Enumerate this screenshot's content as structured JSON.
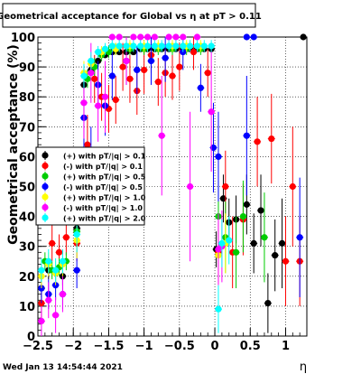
{
  "chart_data": {
    "type": "scatter",
    "title": "Geometrical acceptance for Global vs  η at pT > 0.11",
    "xlabel": "η",
    "ylabel": "Geometrical acceptance (%)",
    "xlim": [
      -2.5,
      1.3
    ],
    "ylim": [
      0,
      100
    ],
    "x_ticks": [
      {
        "value": -2.5,
        "label": "−2.5"
      },
      {
        "value": -2,
        "label": "−2"
      },
      {
        "value": -1.5,
        "label": "−1.5"
      },
      {
        "value": -1,
        "label": "−1"
      },
      {
        "value": -0.5,
        "label": "−0.5"
      },
      {
        "value": 0,
        "label": "0"
      },
      {
        "value": 0.5,
        "label": "0.5"
      },
      {
        "value": 1,
        "label": "1"
      }
    ],
    "y_ticks": [
      0,
      10,
      20,
      30,
      40,
      50,
      60,
      70,
      80,
      90,
      100
    ],
    "grid": true,
    "legend_position": "left-middle",
    "timestamp": "Wed Jan 13 14:54:44 2021",
    "series": [
      {
        "name": "(+) with pT/|q| > 0.1",
        "color": "#000000",
        "points": [
          {
            "x": -2.45,
            "y": 16,
            "e": 3
          },
          {
            "x": -2.35,
            "y": 22,
            "e": 3
          },
          {
            "x": -2.15,
            "y": 20,
            "e": 3
          },
          {
            "x": -1.95,
            "y": 36,
            "e": 5
          },
          {
            "x": -1.85,
            "y": 84,
            "e": 3
          },
          {
            "x": -1.75,
            "y": 89,
            "e": 2
          },
          {
            "x": -1.65,
            "y": 92,
            "e": 2
          },
          {
            "x": -1.55,
            "y": 94,
            "e": 1
          },
          {
            "x": -1.45,
            "y": 95,
            "e": 1
          },
          {
            "x": -1.35,
            "y": 95,
            "e": 1
          },
          {
            "x": -1.25,
            "y": 95,
            "e": 1
          },
          {
            "x": -1.15,
            "y": 95,
            "e": 1
          },
          {
            "x": -1.05,
            "y": 96,
            "e": 1
          },
          {
            "x": -0.95,
            "y": 96,
            "e": 1
          },
          {
            "x": -0.85,
            "y": 96,
            "e": 1
          },
          {
            "x": -0.75,
            "y": 96,
            "e": 1
          },
          {
            "x": -0.65,
            "y": 96,
            "e": 1
          },
          {
            "x": -0.55,
            "y": 96,
            "e": 1
          },
          {
            "x": -0.45,
            "y": 96,
            "e": 1
          },
          {
            "x": -0.35,
            "y": 96,
            "e": 1
          },
          {
            "x": -0.25,
            "y": 96,
            "e": 1
          },
          {
            "x": -0.15,
            "y": 96,
            "e": 1
          },
          {
            "x": -0.05,
            "y": 96,
            "e": 1
          },
          {
            "x": 0.02,
            "y": 29,
            "e": 6
          },
          {
            "x": 0.12,
            "y": 46,
            "e": 8
          },
          {
            "x": 0.2,
            "y": 38,
            "e": 8
          },
          {
            "x": 0.3,
            "y": 39,
            "e": 8
          },
          {
            "x": 0.45,
            "y": 44,
            "e": 10
          },
          {
            "x": 0.55,
            "y": 31,
            "e": 10
          },
          {
            "x": 0.65,
            "y": 42,
            "e": 12
          },
          {
            "x": 0.75,
            "y": 11,
            "e": 10
          },
          {
            "x": 0.85,
            "y": 27,
            "e": 12
          },
          {
            "x": 0.95,
            "y": 31,
            "e": 15
          },
          {
            "x": 1.25,
            "y": 100,
            "e": 0
          }
        ]
      },
      {
        "name": "(-) with pT/|q| > 0.1",
        "color": "#ff0000",
        "points": [
          {
            "x": -2.45,
            "y": 11,
            "e": 5
          },
          {
            "x": -2.3,
            "y": 31,
            "e": 6
          },
          {
            "x": -2.2,
            "y": 28,
            "e": 6
          },
          {
            "x": -2.1,
            "y": 33,
            "e": 6
          },
          {
            "x": -1.95,
            "y": 31,
            "e": 6
          },
          {
            "x": -1.8,
            "y": 64,
            "e": 10
          },
          {
            "x": -1.7,
            "y": 86,
            "e": 8
          },
          {
            "x": -1.6,
            "y": 80,
            "e": 8
          },
          {
            "x": -1.5,
            "y": 76,
            "e": 8
          },
          {
            "x": -1.4,
            "y": 79,
            "e": 8
          },
          {
            "x": -1.3,
            "y": 90,
            "e": 8
          },
          {
            "x": -1.2,
            "y": 86,
            "e": 8
          },
          {
            "x": -1.1,
            "y": 82,
            "e": 8
          },
          {
            "x": -1.0,
            "y": 89,
            "e": 8
          },
          {
            "x": -0.9,
            "y": 94,
            "e": 6
          },
          {
            "x": -0.8,
            "y": 85,
            "e": 8
          },
          {
            "x": -0.7,
            "y": 88,
            "e": 8
          },
          {
            "x": -0.6,
            "y": 87,
            "e": 8
          },
          {
            "x": -0.5,
            "y": 90,
            "e": 8
          },
          {
            "x": -0.3,
            "y": 95,
            "e": 6
          },
          {
            "x": -0.1,
            "y": 88,
            "e": 8
          },
          {
            "x": 0.05,
            "y": 28,
            "e": 10
          },
          {
            "x": 0.15,
            "y": 50,
            "e": 12
          },
          {
            "x": 0.25,
            "y": 28,
            "e": 12
          },
          {
            "x": 0.4,
            "y": 39,
            "e": 12
          },
          {
            "x": 0.6,
            "y": 65,
            "e": 15
          },
          {
            "x": 0.8,
            "y": 66,
            "e": 15
          },
          {
            "x": 1.0,
            "y": 25,
            "e": 15
          },
          {
            "x": 1.1,
            "y": 50,
            "e": 20
          },
          {
            "x": 1.2,
            "y": 25,
            "e": 15
          }
        ]
      },
      {
        "name": "(+) with pT/|q| > 0.5",
        "color": "#00cc00",
        "points": [
          {
            "x": -2.4,
            "y": 25,
            "e": 3
          },
          {
            "x": -2.3,
            "y": 22,
            "e": 3
          },
          {
            "x": -2.2,
            "y": 23,
            "e": 3
          },
          {
            "x": -2.1,
            "y": 25,
            "e": 3
          },
          {
            "x": -1.95,
            "y": 35,
            "e": 5
          },
          {
            "x": -1.8,
            "y": 86,
            "e": 3
          },
          {
            "x": -1.7,
            "y": 90,
            "e": 3
          },
          {
            "x": -1.6,
            "y": 94,
            "e": 2
          },
          {
            "x": -1.5,
            "y": 95,
            "e": 2
          },
          {
            "x": -1.4,
            "y": 96,
            "e": 2
          },
          {
            "x": -1.2,
            "y": 96,
            "e": 2
          },
          {
            "x": -1.0,
            "y": 96,
            "e": 2
          },
          {
            "x": -0.8,
            "y": 96,
            "e": 2
          },
          {
            "x": -0.6,
            "y": 96,
            "e": 2
          },
          {
            "x": -0.4,
            "y": 96,
            "e": 2
          },
          {
            "x": -0.2,
            "y": 96,
            "e": 2
          },
          {
            "x": 0.05,
            "y": 40,
            "e": 12
          },
          {
            "x": 0.15,
            "y": 33,
            "e": 12
          },
          {
            "x": 0.3,
            "y": 28,
            "e": 12
          },
          {
            "x": 0.4,
            "y": 40,
            "e": 12
          },
          {
            "x": 0.7,
            "y": 33,
            "e": 15
          }
        ]
      },
      {
        "name": "(-) with pT/|q| > 0.5",
        "color": "#0000ff",
        "points": [
          {
            "x": -2.45,
            "y": 16,
            "e": 5
          },
          {
            "x": -2.35,
            "y": 14,
            "e": 5
          },
          {
            "x": -2.25,
            "y": 17,
            "e": 5
          },
          {
            "x": -2.15,
            "y": 14,
            "e": 5
          },
          {
            "x": -1.95,
            "y": 22,
            "e": 6
          },
          {
            "x": -1.85,
            "y": 73,
            "e": 10
          },
          {
            "x": -1.75,
            "y": 60,
            "e": 10
          },
          {
            "x": -1.65,
            "y": 84,
            "e": 8
          },
          {
            "x": -1.55,
            "y": 77,
            "e": 10
          },
          {
            "x": -1.45,
            "y": 87,
            "e": 8
          },
          {
            "x": -1.25,
            "y": 92,
            "e": 8
          },
          {
            "x": -1.1,
            "y": 89,
            "e": 8
          },
          {
            "x": -0.9,
            "y": 92,
            "e": 8
          },
          {
            "x": -0.7,
            "y": 93,
            "e": 8
          },
          {
            "x": -0.45,
            "y": 95,
            "e": 6
          },
          {
            "x": -0.2,
            "y": 83,
            "e": 8
          },
          {
            "x": -0.02,
            "y": 63,
            "e": 15
          },
          {
            "x": 0.05,
            "y": 60,
            "e": 15
          },
          {
            "x": 0.45,
            "y": 67,
            "e": 20
          },
          {
            "x": 0.45,
            "y": 100,
            "e": 0
          },
          {
            "x": 0.55,
            "y": 100,
            "e": 0
          },
          {
            "x": 1.2,
            "y": 33,
            "e": 20
          }
        ]
      },
      {
        "name": "(+) with pT/|q| > 1.0",
        "color": "#ffff00",
        "points": [
          {
            "x": -2.45,
            "y": 20,
            "e": 4
          },
          {
            "x": -2.35,
            "y": 24,
            "e": 4
          },
          {
            "x": -2.25,
            "y": 21,
            "e": 4
          },
          {
            "x": -2.15,
            "y": 24,
            "e": 4
          },
          {
            "x": -1.95,
            "y": 32,
            "e": 6
          },
          {
            "x": -1.85,
            "y": 88,
            "e": 4
          },
          {
            "x": -1.75,
            "y": 91,
            "e": 3
          },
          {
            "x": -1.6,
            "y": 95,
            "e": 2
          },
          {
            "x": -1.4,
            "y": 96,
            "e": 2
          },
          {
            "x": -1.2,
            "y": 97,
            "e": 2
          },
          {
            "x": -1.0,
            "y": 97,
            "e": 2
          },
          {
            "x": -0.8,
            "y": 97,
            "e": 2
          },
          {
            "x": -0.6,
            "y": 97,
            "e": 2
          },
          {
            "x": -0.4,
            "y": 97,
            "e": 2
          },
          {
            "x": -0.2,
            "y": 97,
            "e": 2
          },
          {
            "x": 0.05,
            "y": 27,
            "e": 10
          },
          {
            "x": 0.15,
            "y": 31,
            "e": 10
          }
        ]
      },
      {
        "name": "(-) with pT/|q| > 1.0",
        "color": "#ff00ff",
        "points": [
          {
            "x": -2.45,
            "y": 5,
            "e": 5
          },
          {
            "x": -2.35,
            "y": 12,
            "e": 6
          },
          {
            "x": -2.25,
            "y": 7,
            "e": 6
          },
          {
            "x": -2.15,
            "y": 14,
            "e": 6
          },
          {
            "x": -1.85,
            "y": 78,
            "e": 12
          },
          {
            "x": -1.75,
            "y": 88,
            "e": 10
          },
          {
            "x": -1.65,
            "y": 77,
            "e": 12
          },
          {
            "x": -1.55,
            "y": 80,
            "e": 12
          },
          {
            "x": -1.45,
            "y": 100,
            "e": 0
          },
          {
            "x": -1.35,
            "y": 100,
            "e": 0
          },
          {
            "x": -1.25,
            "y": 92,
            "e": 8
          },
          {
            "x": -1.15,
            "y": 100,
            "e": 0
          },
          {
            "x": -1.05,
            "y": 100,
            "e": 0
          },
          {
            "x": -0.95,
            "y": 100,
            "e": 0
          },
          {
            "x": -0.85,
            "y": 100,
            "e": 0
          },
          {
            "x": -0.75,
            "y": 67,
            "e": 20
          },
          {
            "x": -0.65,
            "y": 100,
            "e": 0
          },
          {
            "x": -0.55,
            "y": 100,
            "e": 0
          },
          {
            "x": -0.45,
            "y": 100,
            "e": 0
          },
          {
            "x": -0.35,
            "y": 50,
            "e": 25
          },
          {
            "x": -0.25,
            "y": 100,
            "e": 0
          },
          {
            "x": -0.05,
            "y": 75,
            "e": 20
          },
          {
            "x": 0.05,
            "y": 29,
            "e": 12
          },
          {
            "x": 0.1,
            "y": 30,
            "e": 12
          }
        ]
      },
      {
        "name": "(+) with pT/|q| > 2.0",
        "color": "#00ffff",
        "points": [
          {
            "x": -2.45,
            "y": 22,
            "e": 4
          },
          {
            "x": -2.35,
            "y": 25,
            "e": 4
          },
          {
            "x": -2.25,
            "y": 22,
            "e": 4
          },
          {
            "x": -2.15,
            "y": 25,
            "e": 4
          },
          {
            "x": -1.95,
            "y": 34,
            "e": 6
          },
          {
            "x": -1.85,
            "y": 87,
            "e": 4
          },
          {
            "x": -1.75,
            "y": 92,
            "e": 3
          },
          {
            "x": -1.65,
            "y": 95,
            "e": 2
          },
          {
            "x": -1.55,
            "y": 96,
            "e": 2
          },
          {
            "x": -1.45,
            "y": 97,
            "e": 2
          },
          {
            "x": -1.35,
            "y": 97,
            "e": 2
          },
          {
            "x": -1.25,
            "y": 97,
            "e": 2
          },
          {
            "x": -1.15,
            "y": 97,
            "e": 2
          },
          {
            "x": -1.05,
            "y": 97,
            "e": 2
          },
          {
            "x": -0.95,
            "y": 97,
            "e": 2
          },
          {
            "x": -0.85,
            "y": 97,
            "e": 2
          },
          {
            "x": -0.75,
            "y": 97,
            "e": 2
          },
          {
            "x": -0.65,
            "y": 97,
            "e": 2
          },
          {
            "x": -0.55,
            "y": 97,
            "e": 2
          },
          {
            "x": -0.45,
            "y": 97,
            "e": 2
          },
          {
            "x": -0.35,
            "y": 97,
            "e": 2
          },
          {
            "x": -0.25,
            "y": 97,
            "e": 2
          },
          {
            "x": -0.15,
            "y": 97,
            "e": 2
          },
          {
            "x": -0.05,
            "y": 97,
            "e": 2
          },
          {
            "x": 0.05,
            "y": 9,
            "e": 8
          },
          {
            "x": 0.1,
            "y": 31,
            "e": 8
          },
          {
            "x": 0.2,
            "y": 32,
            "e": 8
          }
        ]
      }
    ]
  }
}
